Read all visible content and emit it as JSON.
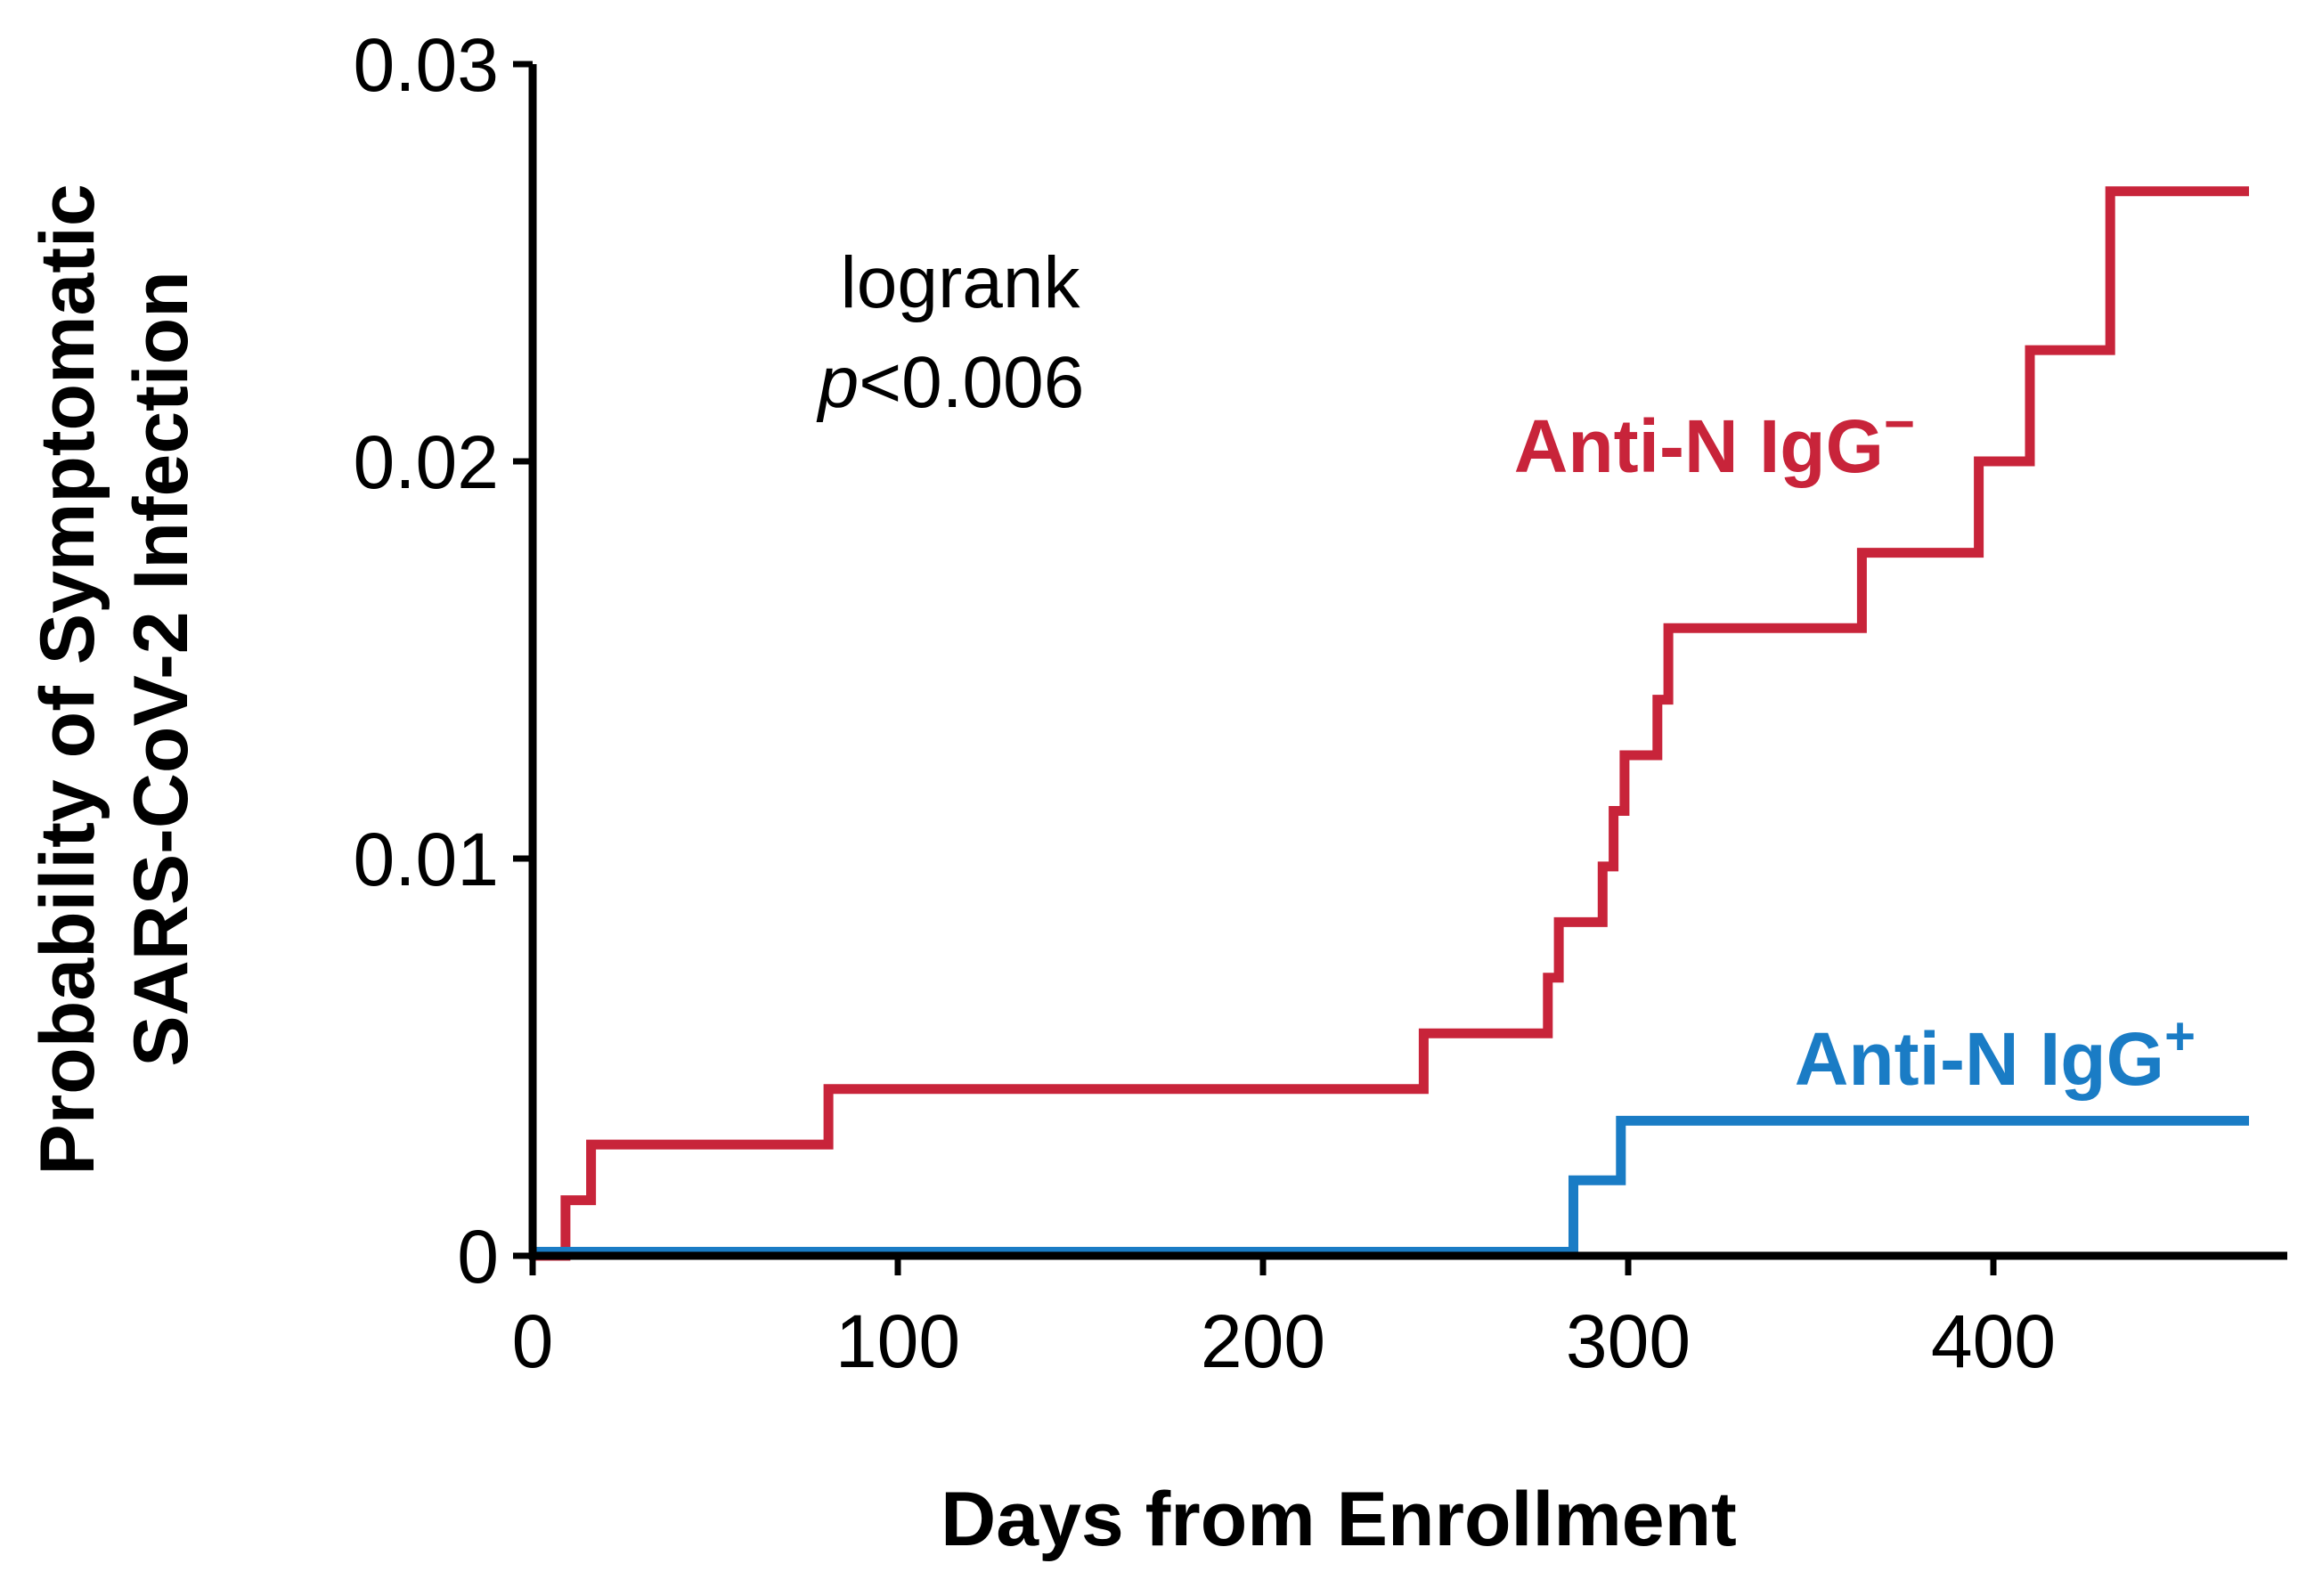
{
  "chart_data": {
    "type": "line",
    "subtype": "step",
    "title": "",
    "xlabel": "Days from Enrollment",
    "ylabel_line1": "Probability of Symptomatic",
    "ylabel_line2": "SARS-CoV-2 Infection",
    "xlim": [
      0,
      470
    ],
    "ylim": [
      0,
      0.03
    ],
    "x_ticks": [
      0,
      100,
      200,
      300,
      400
    ],
    "x_tick_labels": [
      "0",
      "100",
      "200",
      "300",
      "400"
    ],
    "y_ticks": [
      0,
      0.01,
      0.02,
      0.03
    ],
    "y_tick_labels": [
      "0",
      "0.01",
      "0.02",
      "0.03"
    ],
    "annotation": {
      "line1": "logrank",
      "p_symbol": "p",
      "p_rest": "<0.006"
    },
    "series": [
      {
        "name": "Anti-N IgG−",
        "label_text": "Anti-N IgG",
        "label_sup": "−",
        "color": "#c8243a",
        "x": [
          0,
          9,
          9,
          16,
          16,
          81,
          81,
          244,
          244,
          278,
          278,
          281,
          281,
          293,
          293,
          296,
          296,
          299,
          299,
          308,
          308,
          311,
          311,
          364,
          364,
          396,
          396,
          410,
          410,
          432,
          432,
          470
        ],
        "y": [
          0,
          0,
          0.0014,
          0.0014,
          0.0028,
          0.0028,
          0.0042,
          0.0042,
          0.0056,
          0.0056,
          0.007,
          0.007,
          0.0084,
          0.0084,
          0.0098,
          0.0098,
          0.0112,
          0.0112,
          0.0126,
          0.0126,
          0.014,
          0.014,
          0.0158,
          0.0158,
          0.0177,
          0.0177,
          0.02,
          0.02,
          0.0228,
          0.0228,
          0.0268,
          0.0268
        ]
      },
      {
        "name": "Anti-N IgG+",
        "label_text": "Anti-N IgG",
        "label_sup": "+",
        "color": "#1a7cc5",
        "x": [
          0,
          285,
          285,
          298,
          298,
          470
        ],
        "y": [
          0.0001,
          0.0001,
          0.0019,
          0.0019,
          0.0034,
          0.0034
        ]
      }
    ]
  }
}
